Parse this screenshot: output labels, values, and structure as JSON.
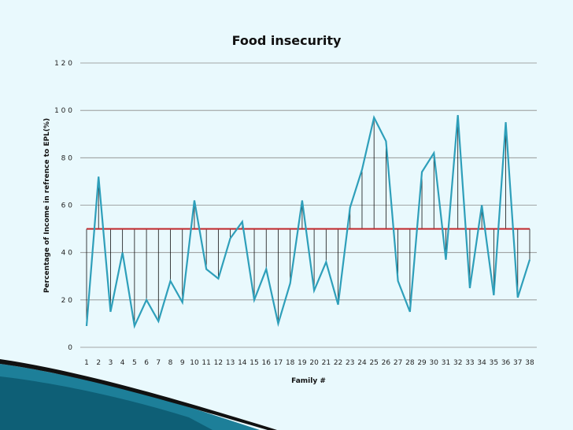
{
  "chart_data": {
    "type": "line",
    "title": "Food insecurity",
    "xlabel": "Family #",
    "ylabel": "Percentage of Income in refrence to EPL(%)",
    "ylim": [
      0,
      120
    ],
    "yticks": [
      0,
      20,
      40,
      60,
      80,
      100,
      120
    ],
    "ytick_labels": [
      "0",
      "2 0",
      "4 0",
      "6 0",
      "8 0",
      "1 0 0",
      "1 2 0"
    ],
    "categories": [
      "1",
      "2",
      "3",
      "4",
      "5",
      "6",
      "7",
      "8",
      "9",
      "10",
      "11",
      "12",
      "13",
      "14",
      "15",
      "16",
      "17",
      "18",
      "19",
      "20",
      "21",
      "22",
      "23",
      "24",
      "25",
      "26",
      "27",
      "28",
      "29",
      "30",
      "31",
      "32",
      "33",
      "34",
      "35",
      "36",
      "37",
      "38"
    ],
    "series": [
      {
        "name": "Percentage of Income",
        "color": "#2e9fba",
        "values": [
          9,
          72,
          15,
          40,
          9,
          20,
          11,
          28,
          19,
          62,
          33,
          29,
          46,
          53,
          20,
          33,
          10,
          27,
          62,
          24,
          36,
          18,
          59,
          75,
          97,
          87,
          28,
          15,
          74,
          82,
          37,
          98,
          25,
          60,
          22,
          95,
          21,
          37
        ]
      }
    ],
    "reference_line": {
      "name": "EPL 50%",
      "value": 50,
      "color": "#c0282d"
    },
    "grid": true
  }
}
